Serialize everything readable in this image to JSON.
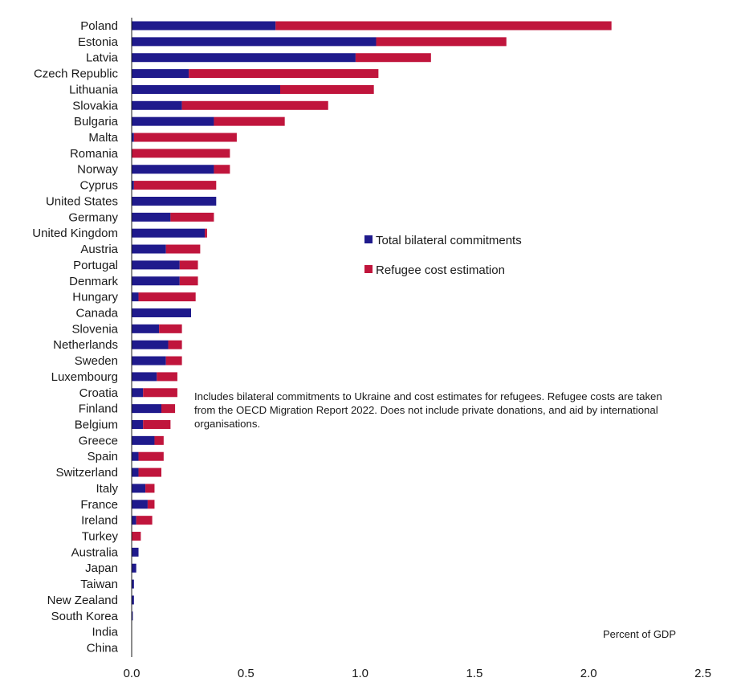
{
  "chart_data": {
    "type": "bar",
    "orientation": "horizontal",
    "stacked": true,
    "categories": [
      "Poland",
      "Estonia",
      "Latvia",
      "Czech Republic",
      "Lithuania",
      "Slovakia",
      "Bulgaria",
      "Malta",
      "Romania",
      "Norway",
      "Cyprus",
      "United States",
      "Germany",
      "United Kingdom",
      "Austria",
      "Portugal",
      "Denmark",
      "Hungary",
      "Canada",
      "Slovenia",
      "Netherlands",
      "Sweden",
      "Luxembourg",
      "Croatia",
      "Finland",
      "Belgium",
      "Greece",
      "Spain",
      "Switzerland",
      "Italy",
      "France",
      "Ireland",
      "Turkey",
      "Australia",
      "Japan",
      "Taiwan",
      "New Zealand",
      "South Korea",
      "India",
      "China"
    ],
    "series": [
      {
        "name": "Total bilateral commitments",
        "color": "#1f1a8c",
        "values": [
          0.63,
          1.07,
          0.98,
          0.25,
          0.65,
          0.22,
          0.36,
          0.01,
          0.0,
          0.36,
          0.01,
          0.37,
          0.17,
          0.32,
          0.15,
          0.21,
          0.21,
          0.03,
          0.26,
          0.12,
          0.16,
          0.15,
          0.11,
          0.05,
          0.13,
          0.05,
          0.1,
          0.03,
          0.03,
          0.06,
          0.07,
          0.02,
          0.0,
          0.03,
          0.02,
          0.01,
          0.01,
          0.005,
          0.0,
          0.0
        ]
      },
      {
        "name": "Refugee cost estimation",
        "color": "#c0153c",
        "values": [
          1.47,
          0.57,
          0.33,
          0.83,
          0.41,
          0.64,
          0.31,
          0.45,
          0.43,
          0.07,
          0.36,
          0.0,
          0.19,
          0.01,
          0.15,
          0.08,
          0.08,
          0.25,
          0.0,
          0.1,
          0.06,
          0.07,
          0.09,
          0.15,
          0.06,
          0.12,
          0.04,
          0.11,
          0.1,
          0.04,
          0.03,
          0.07,
          0.04,
          0.0,
          0.0,
          0.0,
          0.0,
          0.0,
          0.0,
          0.0
        ]
      }
    ],
    "xlim": [
      0,
      2.5
    ],
    "xticks": [
      "0.0",
      "0.5",
      "1.0",
      "1.5",
      "2.0",
      "2.5"
    ],
    "xlabel": "Percent of GDP",
    "ylabel": "",
    "grid": false,
    "legend_position": "center-right",
    "annotation": "Includes bilateral commitments to Ukraine and cost estimates for refugees. Refugee costs are taken from the OECD Migration Report 2022. Does not include private donations, and aid by international organisations."
  }
}
